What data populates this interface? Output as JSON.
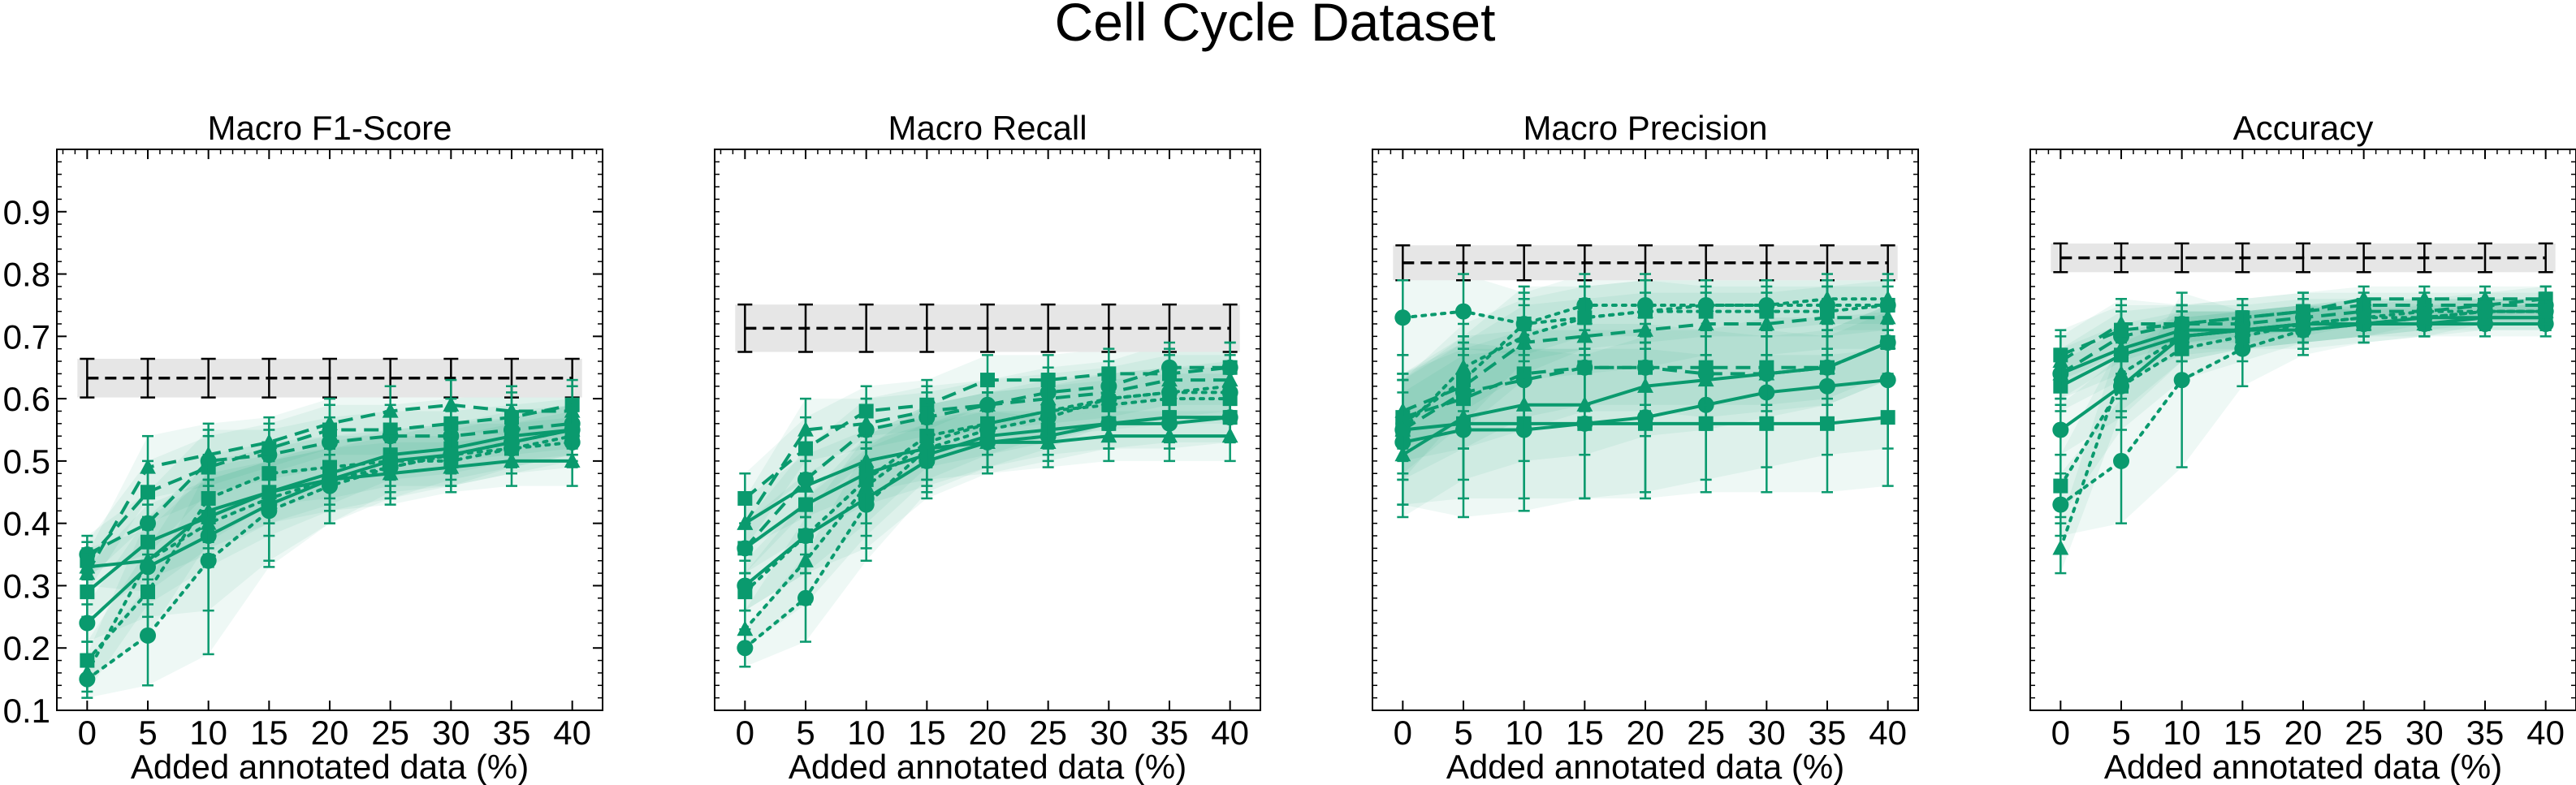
{
  "figure_title": "Cell Cycle Dataset",
  "colors": {
    "series": "#0a9a6e",
    "band": "#0a9a6e",
    "reference_line": "#000000",
    "reference_band": "#e6e6e6"
  },
  "chart_data": [
    {
      "type": "line",
      "title": "Macro F1-Score",
      "xlabel": "Added annotated data (%)",
      "ylabel": "",
      "x": [
        0,
        5,
        10,
        15,
        20,
        25,
        30,
        35,
        40
      ],
      "xlim": [
        -2.5,
        42.5
      ],
      "ylim": [
        0.1,
        1.0
      ],
      "yticks": [
        0.1,
        0.2,
        0.3,
        0.4,
        0.5,
        0.6,
        0.7,
        0.8,
        0.9
      ],
      "grid": false,
      "reference": {
        "value": 0.633,
        "low": 0.602,
        "high": 0.664
      },
      "series": [
        {
          "style": "solid",
          "marker": "circle",
          "values": [
            0.24,
            0.33,
            0.38,
            0.43,
            0.47,
            0.5,
            0.51,
            0.53,
            0.55
          ],
          "std": [
            0.03,
            0.08,
            0.12,
            0.09,
            0.07,
            0.05,
            0.05,
            0.04,
            0.04
          ]
        },
        {
          "style": "solid",
          "marker": "square",
          "values": [
            0.29,
            0.37,
            0.41,
            0.45,
            0.48,
            0.51,
            0.52,
            0.54,
            0.55
          ],
          "std": [
            0.04,
            0.06,
            0.06,
            0.05,
            0.05,
            0.04,
            0.04,
            0.04,
            0.04
          ]
        },
        {
          "style": "solid",
          "marker": "triangle",
          "values": [
            0.33,
            0.34,
            0.42,
            0.45,
            0.47,
            0.48,
            0.49,
            0.5,
            0.5
          ],
          "std": [
            0.03,
            0.05,
            0.06,
            0.05,
            0.05,
            0.05,
            0.04,
            0.04,
            0.04
          ]
        },
        {
          "style": "dashed",
          "marker": "circle",
          "values": [
            0.35,
            0.4,
            0.5,
            0.51,
            0.53,
            0.54,
            0.54,
            0.55,
            0.56
          ],
          "std": [
            0.03,
            0.05,
            0.05,
            0.04,
            0.04,
            0.04,
            0.04,
            0.04,
            0.04
          ]
        },
        {
          "style": "dashed",
          "marker": "square",
          "values": [
            0.34,
            0.45,
            0.49,
            0.52,
            0.55,
            0.55,
            0.56,
            0.57,
            0.59
          ],
          "std": [
            0.03,
            0.05,
            0.05,
            0.04,
            0.04,
            0.04,
            0.04,
            0.04,
            0.04
          ]
        },
        {
          "style": "dashed",
          "marker": "triangle",
          "values": [
            0.32,
            0.49,
            0.51,
            0.53,
            0.56,
            0.58,
            0.59,
            0.58,
            0.58
          ],
          "std": [
            0.03,
            0.05,
            0.05,
            0.04,
            0.04,
            0.04,
            0.04,
            0.04,
            0.04
          ]
        },
        {
          "style": "dotted",
          "marker": "circle",
          "values": [
            0.15,
            0.22,
            0.34,
            0.42,
            0.46,
            0.49,
            0.51,
            0.52,
            0.53
          ],
          "std": [
            0.03,
            0.08,
            0.15,
            0.09,
            0.06,
            0.05,
            0.05,
            0.04,
            0.04
          ]
        },
        {
          "style": "dotted",
          "marker": "square",
          "values": [
            0.18,
            0.29,
            0.44,
            0.48,
            0.49,
            0.5,
            0.5,
            0.52,
            0.54
          ],
          "std": [
            0.03,
            0.07,
            0.07,
            0.05,
            0.05,
            0.04,
            0.04,
            0.04,
            0.04
          ]
        },
        {
          "style": "dotted",
          "marker": "triangle",
          "values": [
            0.16,
            0.34,
            0.4,
            0.44,
            0.47,
            0.49,
            0.51,
            0.53,
            0.55
          ],
          "std": [
            0.03,
            0.07,
            0.07,
            0.06,
            0.05,
            0.05,
            0.04,
            0.04,
            0.04
          ]
        }
      ]
    },
    {
      "type": "line",
      "title": "Macro Recall",
      "xlabel": "Added annotated data (%)",
      "ylabel": "",
      "x": [
        0,
        5,
        10,
        15,
        20,
        25,
        30,
        35,
        40
      ],
      "xlim": [
        -2.5,
        42.5
      ],
      "ylim": [
        0.1,
        1.0
      ],
      "yticks": [],
      "grid": false,
      "reference": {
        "value": 0.713,
        "low": 0.675,
        "high": 0.751
      },
      "series": [
        {
          "style": "solid",
          "marker": "circle",
          "values": [
            0.3,
            0.38,
            0.44,
            0.5,
            0.53,
            0.54,
            0.56,
            0.56,
            0.57
          ],
          "std": [
            0.04,
            0.06,
            0.08,
            0.06,
            0.05,
            0.04,
            0.04,
            0.04,
            0.04
          ]
        },
        {
          "style": "solid",
          "marker": "square",
          "values": [
            0.36,
            0.43,
            0.48,
            0.51,
            0.54,
            0.55,
            0.56,
            0.57,
            0.57
          ],
          "std": [
            0.04,
            0.05,
            0.05,
            0.05,
            0.05,
            0.04,
            0.04,
            0.04,
            0.04
          ]
        },
        {
          "style": "solid",
          "marker": "triangle",
          "values": [
            0.4,
            0.46,
            0.5,
            0.52,
            0.53,
            0.53,
            0.54,
            0.54,
            0.54
          ],
          "std": [
            0.04,
            0.05,
            0.05,
            0.05,
            0.05,
            0.04,
            0.04,
            0.04,
            0.04
          ]
        },
        {
          "style": "dashed",
          "marker": "circle",
          "values": [
            0.36,
            0.47,
            0.55,
            0.57,
            0.59,
            0.61,
            0.62,
            0.65,
            0.65
          ],
          "std": [
            0.04,
            0.05,
            0.05,
            0.04,
            0.04,
            0.04,
            0.04,
            0.04,
            0.04
          ]
        },
        {
          "style": "dashed",
          "marker": "square",
          "values": [
            0.44,
            0.52,
            0.58,
            0.59,
            0.63,
            0.63,
            0.64,
            0.64,
            0.65
          ],
          "std": [
            0.04,
            0.05,
            0.04,
            0.04,
            0.04,
            0.04,
            0.04,
            0.04,
            0.04
          ]
        },
        {
          "style": "dashed",
          "marker": "triangle",
          "values": [
            0.4,
            0.55,
            0.56,
            0.58,
            0.59,
            0.6,
            0.61,
            0.63,
            0.63
          ],
          "std": [
            0.04,
            0.05,
            0.04,
            0.04,
            0.04,
            0.04,
            0.04,
            0.04,
            0.04
          ]
        },
        {
          "style": "dotted",
          "marker": "circle",
          "values": [
            0.2,
            0.28,
            0.43,
            0.52,
            0.55,
            0.57,
            0.6,
            0.61,
            0.61
          ],
          "std": [
            0.03,
            0.07,
            0.09,
            0.07,
            0.06,
            0.05,
            0.04,
            0.04,
            0.04
          ]
        },
        {
          "style": "dotted",
          "marker": "square",
          "values": [
            0.29,
            0.38,
            0.47,
            0.54,
            0.56,
            0.58,
            0.59,
            0.6,
            0.6
          ],
          "std": [
            0.03,
            0.06,
            0.07,
            0.05,
            0.05,
            0.04,
            0.04,
            0.04,
            0.04
          ]
        },
        {
          "style": "dotted",
          "marker": "triangle",
          "values": [
            0.23,
            0.34,
            0.46,
            0.53,
            0.56,
            0.58,
            0.6,
            0.61,
            0.62
          ],
          "std": [
            0.03,
            0.07,
            0.08,
            0.06,
            0.05,
            0.05,
            0.04,
            0.04,
            0.04
          ]
        }
      ]
    },
    {
      "type": "line",
      "title": "Macro Precision",
      "xlabel": "Added annotated data (%)",
      "ylabel": "",
      "x": [
        0,
        5,
        10,
        15,
        20,
        25,
        30,
        35,
        40
      ],
      "xlim": [
        -2.5,
        42.5
      ],
      "ylim": [
        0.1,
        1.0
      ],
      "yticks": [],
      "grid": false,
      "reference": {
        "value": 0.818,
        "low": 0.79,
        "high": 0.846
      },
      "series": [
        {
          "style": "solid",
          "marker": "circle",
          "values": [
            0.53,
            0.55,
            0.55,
            0.56,
            0.57,
            0.59,
            0.61,
            0.62,
            0.63
          ],
          "std": [
            0.1,
            0.14,
            0.13,
            0.12,
            0.12,
            0.12,
            0.12,
            0.11,
            0.11
          ]
        },
        {
          "style": "solid",
          "marker": "square",
          "values": [
            0.55,
            0.56,
            0.56,
            0.56,
            0.56,
            0.56,
            0.56,
            0.56,
            0.57
          ],
          "std": [
            0.12,
            0.12,
            0.12,
            0.12,
            0.12,
            0.11,
            0.11,
            0.11,
            0.11
          ]
        },
        {
          "style": "solid",
          "marker": "triangle",
          "values": [
            0.51,
            0.57,
            0.59,
            0.59,
            0.62,
            0.63,
            0.64,
            0.65,
            0.69
          ],
          "std": [
            0.1,
            0.1,
            0.09,
            0.08,
            0.08,
            0.08,
            0.07,
            0.06,
            0.06
          ]
        },
        {
          "style": "dashed",
          "marker": "circle",
          "values": [
            0.55,
            0.61,
            0.63,
            0.65,
            0.65,
            0.64,
            0.64,
            0.65,
            0.69
          ],
          "std": [
            0.08,
            0.09,
            0.08,
            0.07,
            0.07,
            0.07,
            0.06,
            0.06,
            0.06
          ]
        },
        {
          "style": "dashed",
          "marker": "square",
          "values": [
            0.57,
            0.6,
            0.64,
            0.65,
            0.65,
            0.65,
            0.65,
            0.65,
            0.69
          ],
          "std": [
            0.07,
            0.08,
            0.07,
            0.06,
            0.06,
            0.06,
            0.06,
            0.05,
            0.05
          ]
        },
        {
          "style": "dashed",
          "marker": "triangle",
          "values": [
            0.58,
            0.62,
            0.69,
            0.7,
            0.71,
            0.72,
            0.72,
            0.73,
            0.73
          ],
          "std": [
            0.06,
            0.07,
            0.06,
            0.06,
            0.06,
            0.05,
            0.05,
            0.05,
            0.05
          ]
        },
        {
          "style": "dotted",
          "marker": "circle",
          "values": [
            0.73,
            0.74,
            0.72,
            0.75,
            0.75,
            0.75,
            0.75,
            0.75,
            0.75
          ],
          "std": [
            0.06,
            0.06,
            0.05,
            0.05,
            0.05,
            0.04,
            0.04,
            0.04,
            0.04
          ]
        },
        {
          "style": "dotted",
          "marker": "square",
          "values": [
            0.56,
            0.63,
            0.72,
            0.73,
            0.74,
            0.74,
            0.74,
            0.74,
            0.75
          ],
          "std": [
            0.08,
            0.07,
            0.06,
            0.05,
            0.05,
            0.04,
            0.04,
            0.04,
            0.04
          ]
        },
        {
          "style": "dotted",
          "marker": "triangle",
          "values": [
            0.55,
            0.65,
            0.7,
            0.73,
            0.74,
            0.75,
            0.75,
            0.76,
            0.76
          ],
          "std": [
            0.08,
            0.07,
            0.06,
            0.05,
            0.05,
            0.04,
            0.04,
            0.04,
            0.04
          ]
        }
      ]
    },
    {
      "type": "line",
      "title": "Accuracy",
      "xlabel": "Added annotated data (%)",
      "ylabel": "",
      "x": [
        0,
        5,
        10,
        15,
        20,
        25,
        30,
        35,
        40
      ],
      "xlim": [
        -2.5,
        42.5
      ],
      "ylim": [
        0.1,
        1.0
      ],
      "yticks": [],
      "grid": false,
      "reference": {
        "value": 0.826,
        "low": 0.803,
        "high": 0.849
      },
      "series": [
        {
          "style": "solid",
          "marker": "circle",
          "values": [
            0.55,
            0.62,
            0.7,
            0.71,
            0.71,
            0.72,
            0.72,
            0.72,
            0.72
          ],
          "std": [
            0.04,
            0.05,
            0.04,
            0.03,
            0.03,
            0.03,
            0.02,
            0.02,
            0.02
          ]
        },
        {
          "style": "solid",
          "marker": "square",
          "values": [
            0.62,
            0.67,
            0.7,
            0.71,
            0.72,
            0.72,
            0.73,
            0.73,
            0.73
          ],
          "std": [
            0.04,
            0.04,
            0.03,
            0.03,
            0.03,
            0.02,
            0.02,
            0.02,
            0.02
          ]
        },
        {
          "style": "solid",
          "marker": "triangle",
          "values": [
            0.64,
            0.68,
            0.71,
            0.71,
            0.72,
            0.72,
            0.72,
            0.73,
            0.73
          ],
          "std": [
            0.04,
            0.04,
            0.03,
            0.03,
            0.03,
            0.02,
            0.02,
            0.02,
            0.02
          ]
        },
        {
          "style": "dashed",
          "marker": "circle",
          "values": [
            0.64,
            0.7,
            0.72,
            0.72,
            0.73,
            0.74,
            0.74,
            0.75,
            0.75
          ],
          "std": [
            0.04,
            0.04,
            0.03,
            0.03,
            0.03,
            0.02,
            0.02,
            0.02,
            0.02
          ]
        },
        {
          "style": "dashed",
          "marker": "square",
          "values": [
            0.67,
            0.71,
            0.72,
            0.73,
            0.74,
            0.75,
            0.75,
            0.75,
            0.76
          ],
          "std": [
            0.04,
            0.04,
            0.03,
            0.03,
            0.03,
            0.02,
            0.02,
            0.02,
            0.02
          ]
        },
        {
          "style": "dashed",
          "marker": "triangle",
          "values": [
            0.66,
            0.72,
            0.72,
            0.73,
            0.74,
            0.76,
            0.76,
            0.76,
            0.76
          ],
          "std": [
            0.04,
            0.04,
            0.03,
            0.03,
            0.03,
            0.02,
            0.02,
            0.02,
            0.02
          ]
        },
        {
          "style": "dotted",
          "marker": "circle",
          "values": [
            0.43,
            0.5,
            0.63,
            0.68,
            0.71,
            0.72,
            0.73,
            0.74,
            0.74
          ],
          "std": [
            0.05,
            0.1,
            0.14,
            0.06,
            0.04,
            0.03,
            0.03,
            0.02,
            0.02
          ]
        },
        {
          "style": "dotted",
          "marker": "square",
          "values": [
            0.46,
            0.62,
            0.68,
            0.7,
            0.72,
            0.73,
            0.74,
            0.74,
            0.74
          ],
          "std": [
            0.05,
            0.07,
            0.05,
            0.04,
            0.03,
            0.03,
            0.02,
            0.02,
            0.02
          ]
        },
        {
          "style": "dotted",
          "marker": "triangle",
          "values": [
            0.36,
            0.64,
            0.7,
            0.71,
            0.72,
            0.73,
            0.73,
            0.74,
            0.74
          ],
          "std": [
            0.04,
            0.06,
            0.04,
            0.03,
            0.03,
            0.03,
            0.02,
            0.02,
            0.02
          ]
        }
      ]
    }
  ]
}
